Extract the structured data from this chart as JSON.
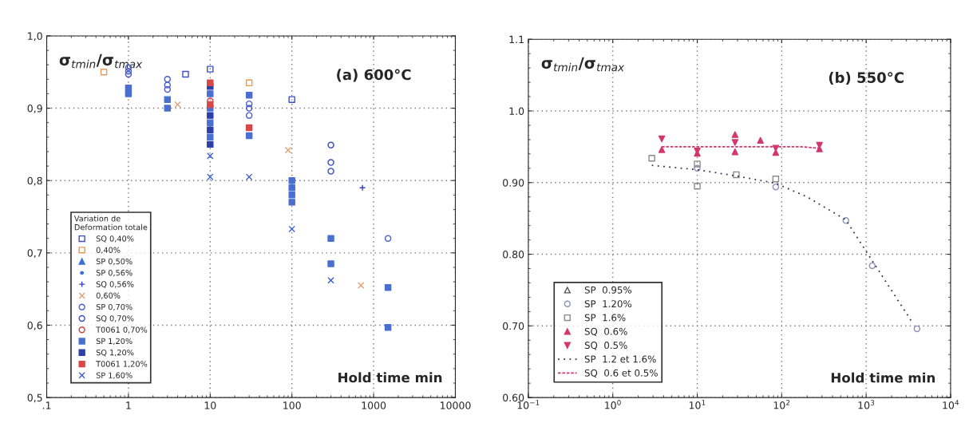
{
  "chart_data": [
    {
      "type": "scatter",
      "title": "(a) 600°C",
      "xlabel": "Hold time min",
      "ylabel": "σ$_{tmin}$/σ$_{tmax}$",
      "legend_title": "Variation de\nDeformation totale",
      "log": "x",
      "grid": true,
      "legend": "bottom left",
      "xlim": [
        0.1,
        10000
      ],
      "xticks": [
        {
          "value": 0.1,
          "label": ".1"
        },
        1,
        10,
        100,
        1000,
        10000
      ],
      "ylim": [
        0.5,
        1.0
      ],
      "yticks": [
        {
          "value": 0.5,
          "label": "0,5"
        },
        {
          "value": 0.6,
          "label": "0,6"
        },
        {
          "value": 0.7,
          "label": "0,7"
        },
        {
          "value": 0.8,
          "label": "0,8"
        },
        {
          "value": 0.9,
          "label": "0,9"
        },
        {
          "value": 1.0,
          "label": "1,0"
        }
      ],
      "series": [
        {
          "name": "SQ 0,40%",
          "color": "#3b4fc4",
          "marker": "square_open",
          "x": [
            5,
            10,
            100
          ],
          "values": [
            0.947,
            0.954,
            0.912
          ]
        },
        {
          "name": "0,40%",
          "color": "#e59a5a",
          "marker": "square_open",
          "x": [
            0.5,
            30
          ],
          "values": [
            0.95,
            0.935
          ]
        },
        {
          "name": "SP 0,50%",
          "color": "#3b6fd4",
          "marker": "triangle"
        },
        {
          "name": "SP 0,56%",
          "color": "#3b6fd4",
          "marker": "plus_small"
        },
        {
          "name": "SQ 0,56%",
          "color": "#3a3fc0",
          "marker": "plus",
          "x": [
            730
          ],
          "values": [
            0.79
          ]
        },
        {
          "name": "0,60%",
          "color": "#e5a070",
          "marker": "x",
          "x": [
            4,
            90,
            700
          ],
          "values": [
            0.905,
            0.842,
            0.655
          ]
        },
        {
          "name": "SP 0,70%",
          "color": "#4a5fc8",
          "marker": "circle_open",
          "x": [
            1,
            1,
            1,
            3,
            3,
            3,
            30,
            30,
            30,
            1500
          ],
          "values": [
            0.956,
            0.951,
            0.947,
            0.94,
            0.932,
            0.926,
            0.906,
            0.9,
            0.89,
            0.72
          ]
        },
        {
          "name": "SQ 0,70%",
          "color": "#3b4fc4",
          "marker": "circle_open",
          "x": [
            300,
            300,
            300
          ],
          "values": [
            0.849,
            0.825,
            0.813
          ]
        },
        {
          "name": "T0061 0,70%",
          "color": "#d04040",
          "marker": "circle_open",
          "x": [
            10
          ],
          "values": [
            0.91
          ]
        },
        {
          "name": "SP 1,20%",
          "color": "#4a6fd0",
          "marker": "square",
          "x": [
            1,
            1,
            3,
            3,
            10,
            10,
            10,
            10,
            30,
            30,
            100,
            100,
            100,
            100,
            300,
            300,
            1500,
            1500
          ],
          "values": [
            0.928,
            0.92,
            0.912,
            0.9,
            0.92,
            0.9,
            0.88,
            0.86,
            0.918,
            0.862,
            0.8,
            0.79,
            0.78,
            0.77,
            0.72,
            0.685,
            0.652,
            0.597
          ]
        },
        {
          "name": "SQ 1,20%",
          "color": "#2d3fa8",
          "marker": "square",
          "x": [
            10,
            10,
            10,
            10
          ],
          "values": [
            0.93,
            0.89,
            0.87,
            0.85
          ]
        },
        {
          "name": "T0061 1,20%",
          "color": "#d84848",
          "marker": "square",
          "x": [
            10,
            10,
            30
          ],
          "values": [
            0.935,
            0.905,
            0.873
          ]
        },
        {
          "name": "SP 1,60%",
          "color": "#3b5fd0",
          "marker": "cross",
          "x": [
            10,
            10,
            30,
            100,
            300
          ],
          "values": [
            0.834,
            0.805,
            0.805,
            0.733,
            0.662
          ]
        }
      ]
    },
    {
      "type": "scatter",
      "title": "(b) 550°C",
      "xlabel": "Hold time min",
      "ylabel": "σ$_{tmin}$/σ$_{tmax}$",
      "log": "x",
      "grid": true,
      "legend": "bottom left",
      "xlim": [
        0.1,
        10000
      ],
      "xticks": [
        {
          "value": 0.1,
          "label": "10$^{−1}$"
        },
        {
          "value": 1,
          "label": "10$^{0}$"
        },
        {
          "value": 10,
          "label": "10$^{1}$"
        },
        {
          "value": 100,
          "label": "10$^{2}$"
        },
        {
          "value": 1000,
          "label": "10$^{3}$"
        },
        {
          "value": 10000,
          "label": "10$^{4}$"
        }
      ],
      "ylim": [
        0.6,
        1.1
      ],
      "yticks": [
        {
          "value": 0.6,
          "label": "0.60"
        },
        {
          "value": 0.7,
          "label": "0.70"
        },
        {
          "value": 0.8,
          "label": "0.80"
        },
        {
          "value": 0.9,
          "label": "0.90"
        },
        {
          "value": 1.0,
          "label": "1.0"
        },
        {
          "value": 1.1,
          "label": "1.1"
        }
      ],
      "series": [
        {
          "name": "SP  0.95%",
          "color": "#555555",
          "marker": "triangle_open"
        },
        {
          "name": "SP  1.20%",
          "color": "#8e93b8",
          "marker": "circle_open",
          "x": [
            10,
            85,
            575,
            1180,
            4000
          ],
          "values": [
            0.92,
            0.894,
            0.847,
            0.784,
            0.696
          ]
        },
        {
          "name": "SP  1.6%",
          "color": "#8a8a8a",
          "marker": "square_open",
          "x": [
            2.9,
            10,
            10,
            29,
            85
          ],
          "values": [
            0.934,
            0.926,
            0.895,
            0.911,
            0.905
          ]
        },
        {
          "name": "SQ  0.6%",
          "color": "#d2386a",
          "marker": "triangle",
          "x": [
            3.8,
            10,
            28,
            28,
            56,
            85,
            280
          ],
          "values": [
            0.946,
            0.941,
            0.967,
            0.943,
            0.959,
            0.942,
            0.947
          ]
        },
        {
          "name": "SQ  0.5%",
          "color": "#d2386a",
          "marker": "triangle_down",
          "x": [
            3.8,
            10,
            28,
            85,
            280
          ],
          "values": [
            0.961,
            0.944,
            0.956,
            0.948,
            0.952
          ]
        },
        {
          "name": "SP  1.2 et 1.6%",
          "type": "line",
          "line_style": "dotted",
          "color": "#333355",
          "x": [
            2.9,
            10,
            30,
            85,
            200,
            575,
            1000,
            3600
          ],
          "values": [
            0.924,
            0.918,
            0.909,
            0.899,
            0.88,
            0.848,
            0.804,
            0.703
          ]
        },
        {
          "name": "SQ  0.6 et 0.5%",
          "type": "line",
          "line_style": "dashed",
          "color": "#d2386a",
          "x": [
            3.8,
            170,
            280
          ],
          "values": [
            0.95,
            0.95,
            0.948
          ]
        }
      ]
    }
  ]
}
